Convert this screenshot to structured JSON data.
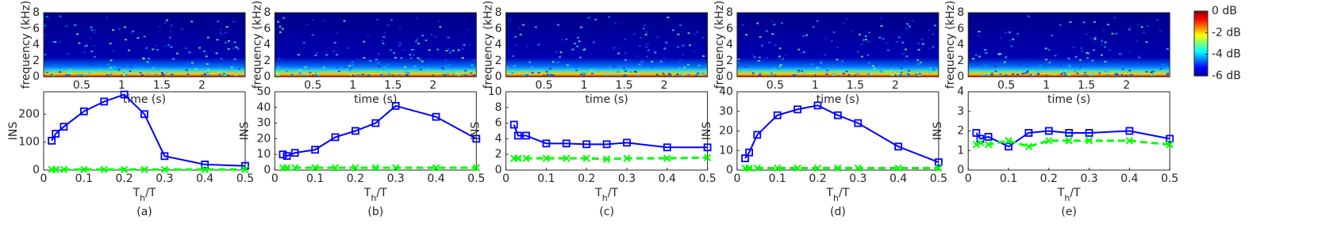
{
  "chart_data": [
    {
      "type": "spectrogram",
      "xlabel": "time (s)",
      "ylabel": "frequency (kHz)",
      "xlim": [
        0.025,
        2.54
      ],
      "xticks": [
        0.5,
        1,
        1.5,
        2
      ],
      "ylim": [
        0,
        8
      ],
      "yticks": [
        0,
        2,
        4,
        6,
        8
      ]
    },
    {
      "type": "spectrogram",
      "xlabel": "time (s)",
      "ylabel": "frequency (kHz)",
      "xlim": [
        0.025,
        2.54
      ],
      "xticks": [
        0.5,
        1,
        1.5,
        2
      ],
      "ylim": [
        0,
        8
      ],
      "yticks": [
        0,
        2,
        4,
        6,
        8
      ]
    },
    {
      "type": "spectrogram",
      "xlabel": "time (s)",
      "ylabel": "frequency (kHz)",
      "xlim": [
        0.025,
        2.54
      ],
      "xticks": [
        0.5,
        1,
        1.5,
        2
      ],
      "ylim": [
        0,
        8
      ],
      "yticks": [
        0,
        2,
        4,
        6,
        8
      ]
    },
    {
      "type": "spectrogram",
      "xlabel": "time (s)",
      "ylabel": "frequency (kHz)",
      "xlim": [
        0.025,
        2.54
      ],
      "xticks": [
        0.5,
        1,
        1.5,
        2
      ],
      "ylim": [
        0,
        8
      ],
      "yticks": [
        0,
        2,
        4,
        6,
        8
      ]
    },
    {
      "type": "spectrogram",
      "xlabel": "time (s)",
      "ylabel": "frequency (kHz)",
      "xlim": [
        0.025,
        2.54
      ],
      "xticks": [
        0.5,
        1,
        1.5,
        2
      ],
      "ylim": [
        0,
        8
      ],
      "yticks": [
        0,
        2,
        4,
        6,
        8
      ],
      "colorbar": {
        "lim": [
          -6,
          0
        ],
        "ticks": [
          {
            "value": 0,
            "label": "0 dB"
          },
          {
            "value": -2,
            "label": "-2 dB"
          },
          {
            "value": -4,
            "label": "-4 dB"
          },
          {
            "value": -6,
            "label": "-6 dB"
          }
        ]
      }
    },
    {
      "type": "line",
      "caption": "(a)",
      "ylabel": "INS",
      "xlabel": [
        "T",
        "h",
        "/T"
      ],
      "x": [
        0.02,
        0.03,
        0.05,
        0.1,
        0.15,
        0.2,
        0.25,
        0.3,
        0.4,
        0.5
      ],
      "xlim": [
        0,
        0.5
      ],
      "xticks": [
        0,
        0.1,
        0.2,
        0.3,
        0.4,
        0.5
      ],
      "ylim": [
        0,
        280
      ],
      "yticks": [
        0,
        100,
        200
      ],
      "series": [
        {
          "color": "#0000ff",
          "marker": "square",
          "values": [
            105,
            130,
            155,
            210,
            245,
            270,
            200,
            50,
            20,
            15
          ]
        },
        {
          "color": "#00ff00",
          "marker": "x",
          "dashed": true,
          "values": [
            2,
            2,
            2,
            2,
            2,
            2,
            2,
            2,
            2,
            2
          ]
        }
      ]
    },
    {
      "type": "line",
      "caption": "(b)",
      "ylabel": "INS",
      "xlabel": [
        "T",
        "h",
        "/T"
      ],
      "x": [
        0.02,
        0.03,
        0.05,
        0.1,
        0.15,
        0.2,
        0.25,
        0.3,
        0.4,
        0.5
      ],
      "xlim": [
        0,
        0.5
      ],
      "xticks": [
        0,
        0.1,
        0.2,
        0.3,
        0.4,
        0.5
      ],
      "ylim": [
        0,
        50
      ],
      "yticks": [
        0,
        10,
        20,
        30,
        40,
        50
      ],
      "series": [
        {
          "color": "#0000ff",
          "marker": "square",
          "values": [
            10,
            9,
            11,
            13,
            21,
            25,
            30,
            41,
            34,
            20
          ]
        },
        {
          "color": "#00ff00",
          "marker": "x",
          "dashed": true,
          "values": [
            1.5,
            1.5,
            1.5,
            1.5,
            1.5,
            1.5,
            1.5,
            1.5,
            1.5,
            1.5
          ]
        }
      ]
    },
    {
      "type": "line",
      "caption": "(c)",
      "ylabel": "INS",
      "xlabel": [
        "T",
        "h",
        "/T"
      ],
      "x": [
        0.02,
        0.03,
        0.05,
        0.1,
        0.15,
        0.2,
        0.25,
        0.3,
        0.4,
        0.5
      ],
      "xlim": [
        0,
        0.5
      ],
      "xticks": [
        0,
        0.1,
        0.2,
        0.3,
        0.4,
        0.5
      ],
      "ylim": [
        0,
        10
      ],
      "yticks": [
        0,
        2,
        4,
        6,
        8,
        10
      ],
      "series": [
        {
          "color": "#0000ff",
          "marker": "square",
          "values": [
            5.8,
            4.4,
            4.4,
            3.4,
            3.4,
            3.3,
            3.3,
            3.5,
            2.9,
            2.9
          ]
        },
        {
          "color": "#00ff00",
          "marker": "x",
          "dashed": true,
          "values": [
            1.5,
            1.5,
            1.5,
            1.5,
            1.5,
            1.5,
            1.4,
            1.5,
            1.5,
            1.6
          ]
        }
      ]
    },
    {
      "type": "line",
      "caption": "(d)",
      "ylabel": "INS",
      "xlabel": [
        "T",
        "h",
        "/T"
      ],
      "x": [
        0.02,
        0.03,
        0.05,
        0.1,
        0.15,
        0.2,
        0.25,
        0.3,
        0.4,
        0.5
      ],
      "xlim": [
        0,
        0.5
      ],
      "xticks": [
        0,
        0.1,
        0.2,
        0.3,
        0.4,
        0.5
      ],
      "ylim": [
        0,
        40
      ],
      "yticks": [
        0,
        10,
        20,
        30,
        40
      ],
      "series": [
        {
          "color": "#0000ff",
          "marker": "square",
          "values": [
            6,
            9,
            18,
            28,
            31,
            33,
            28,
            24,
            12,
            4
          ]
        },
        {
          "color": "#00ff00",
          "marker": "x",
          "dashed": true,
          "values": [
            1,
            1,
            1,
            1,
            1,
            1,
            1,
            1,
            1,
            1
          ]
        }
      ]
    },
    {
      "type": "line",
      "caption": "(e)",
      "ylabel": "INS",
      "xlabel": [
        "T",
        "h",
        "/T"
      ],
      "x": [
        0.02,
        0.03,
        0.05,
        0.1,
        0.15,
        0.2,
        0.25,
        0.3,
        0.4,
        0.5
      ],
      "xlim": [
        0,
        0.5
      ],
      "xticks": [
        0,
        0.1,
        0.2,
        0.3,
        0.4,
        0.5
      ],
      "ylim": [
        0,
        4
      ],
      "yticks": [
        0,
        1,
        2,
        3,
        4
      ],
      "series": [
        {
          "color": "#0000ff",
          "marker": "square",
          "values": [
            1.9,
            1.6,
            1.7,
            1.2,
            1.9,
            2.0,
            1.9,
            1.9,
            2.0,
            1.6
          ]
        },
        {
          "color": "#00ff00",
          "marker": "x",
          "dashed": true,
          "values": [
            1.3,
            1.4,
            1.3,
            1.5,
            1.2,
            1.5,
            1.5,
            1.5,
            1.5,
            1.3
          ]
        }
      ]
    }
  ]
}
